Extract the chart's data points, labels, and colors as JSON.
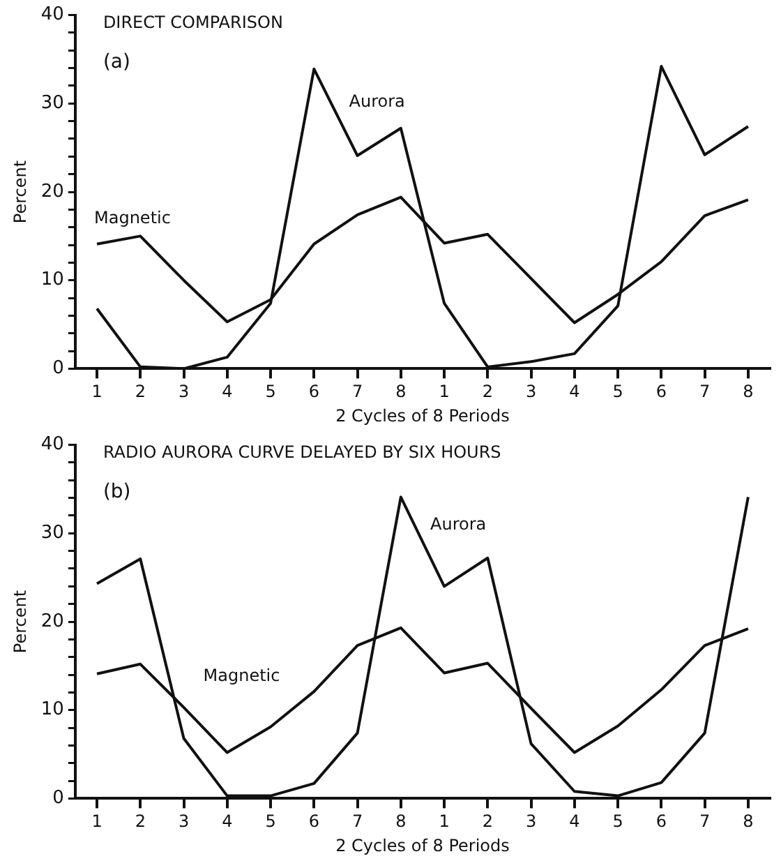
{
  "chart_data": [
    {
      "type": "line",
      "title": "DIRECT COMPARISON",
      "annotations": [
        "(a)"
      ],
      "xlabel": "2 Cycles of 8 Periods",
      "ylabel": "Percent",
      "categories": [
        "1",
        "2",
        "3",
        "4",
        "5",
        "6",
        "7",
        "8",
        "1",
        "2",
        "3",
        "4",
        "5",
        "6",
        "7",
        "8"
      ],
      "ylim": [
        0,
        40
      ],
      "yticks": [
        0,
        {
          "value": 2,
          "label": null
        },
        {
          "value": 4,
          "label": null
        },
        {
          "value": 6,
          "label": null
        },
        {
          "value": 8,
          "label": null
        },
        10,
        {
          "value": 12,
          "label": null
        },
        {
          "value": 14,
          "label": null
        },
        {
          "value": 16,
          "label": null
        },
        {
          "value": 18,
          "label": null
        },
        20,
        {
          "value": 22,
          "label": null
        },
        {
          "value": 24,
          "label": null
        },
        {
          "value": 26,
          "label": null
        },
        {
          "value": 28,
          "label": null
        },
        30,
        {
          "value": 32,
          "label": null
        },
        {
          "value": 34,
          "label": null
        },
        {
          "value": 36,
          "label": null
        },
        {
          "value": 38,
          "label": null
        },
        40
      ],
      "grid": false,
      "legend": false,
      "marker": "none",
      "line_style": "solid",
      "series": [
        {
          "name": "Magnetic",
          "color": "#111111",
          "values": [
            14.1,
            15,
            10,
            5.3,
            7.8,
            14.1,
            17.4,
            19.4,
            14.2,
            15.2,
            10.2,
            5.2,
            8.4,
            12.1,
            17.3,
            19.1
          ]
        },
        {
          "name": "Aurora",
          "color": "#111111",
          "values": [
            6.8,
            0.2,
            0,
            1.3,
            7.4,
            33.9,
            24.1,
            27.2,
            7.4,
            0.2,
            0.8,
            1.7,
            7.1,
            34.2,
            24.2,
            27.4
          ]
        }
      ]
    },
    {
      "type": "line",
      "title": "RADIO AURORA CURVE DELAYED BY SIX HOURS",
      "annotations": [
        "(b)"
      ],
      "xlabel": "2 Cycles of 8 Periods",
      "ylabel": "Percent",
      "categories": [
        "1",
        "2",
        "3",
        "4",
        "5",
        "6",
        "7",
        "8",
        "1",
        "2",
        "3",
        "4",
        "5",
        "6",
        "7",
        "8"
      ],
      "ylim": [
        0,
        40
      ],
      "yticks": [
        0,
        {
          "value": 2,
          "label": null
        },
        {
          "value": 4,
          "label": null
        },
        {
          "value": 6,
          "label": null
        },
        {
          "value": 8,
          "label": null
        },
        10,
        {
          "value": 12,
          "label": null
        },
        {
          "value": 14,
          "label": null
        },
        {
          "value": 16,
          "label": null
        },
        {
          "value": 18,
          "label": null
        },
        20,
        {
          "value": 22,
          "label": null
        },
        {
          "value": 24,
          "label": null
        },
        {
          "value": 26,
          "label": null
        },
        {
          "value": 28,
          "label": null
        },
        30,
        {
          "value": 32,
          "label": null
        },
        {
          "value": 34,
          "label": null
        },
        {
          "value": 36,
          "label": null
        },
        {
          "value": 38,
          "label": null
        },
        40
      ],
      "grid": false,
      "legend": false,
      "marker": "none",
      "line_style": "solid",
      "series": [
        {
          "name": "Magnetic",
          "color": "#111111",
          "values": [
            14.1,
            15.2,
            10.3,
            5.2,
            8.1,
            12.1,
            17.3,
            19.3,
            14.2,
            15.3,
            10.2,
            5.2,
            8.2,
            12.3,
            17.3,
            19.2
          ]
        },
        {
          "name": "Aurora",
          "color": "#111111",
          "values": [
            24.3,
            27.1,
            6.8,
            0.3,
            0.3,
            1.7,
            7.4,
            34.1,
            24,
            27.2,
            6.2,
            0.8,
            0.3,
            1.8,
            7.4,
            34.1
          ]
        }
      ]
    }
  ]
}
